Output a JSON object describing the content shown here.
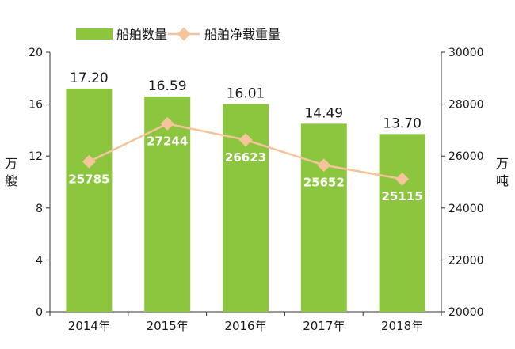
{
  "chart_data": {
    "type": "bar+line",
    "categories": [
      "2014年",
      "2015年",
      "2016年",
      "2017年",
      "2018年"
    ],
    "series": [
      {
        "name": "船舶数量",
        "type": "bar",
        "axis": "left",
        "color": "#8cc63f",
        "values": [
          17.2,
          16.59,
          16.01,
          14.49,
          13.7
        ],
        "labels": [
          "17.20",
          "16.59",
          "16.01",
          "14.49",
          "13.70"
        ]
      },
      {
        "name": "船舶净载重量",
        "type": "line",
        "axis": "right",
        "color": "#f5c49b",
        "values": [
          25785,
          27244,
          26623,
          25652,
          25115
        ],
        "labels": [
          "25785",
          "27244",
          "26623",
          "25652",
          "25115"
        ]
      }
    ],
    "ylabel_left": "万艘",
    "ylabel_right": "万吨",
    "ylim_left": [
      0,
      20
    ],
    "yticks_left": [
      "0",
      "4",
      "8",
      "12",
      "16",
      "20"
    ],
    "ylim_right": [
      20000,
      30000
    ],
    "yticks_right": [
      "20000",
      "22000",
      "24000",
      "26000",
      "28000",
      "30000"
    ],
    "legend_position": "top-left",
    "grid": false
  }
}
